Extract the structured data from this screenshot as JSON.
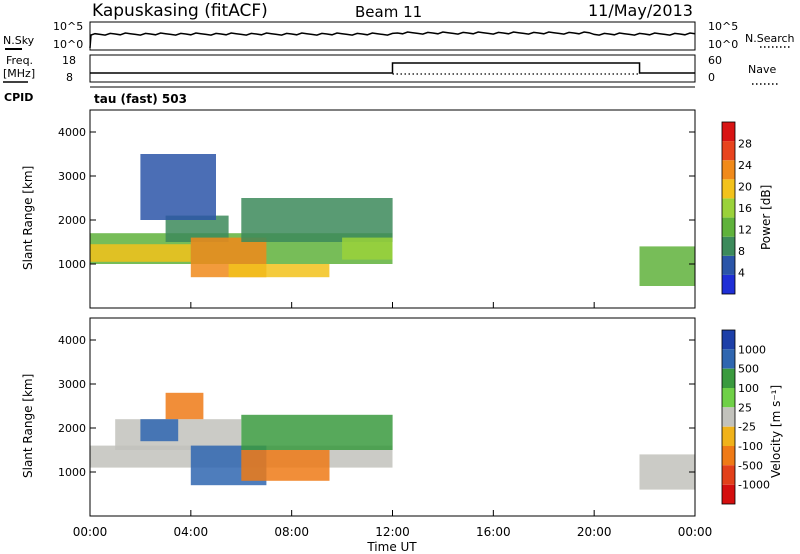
{
  "header": {
    "station": "Kapuskasing (fitACF)",
    "beam": "Beam 11",
    "date": "11/May/2013"
  },
  "noise_panel": {
    "left_label": "N.Sky",
    "right_label": "N.Search",
    "ticks_left": [
      "10^5",
      "10^0"
    ],
    "ticks_right": [
      "10^5",
      "10^0"
    ]
  },
  "freq_panel": {
    "left_label_1": "Freq.",
    "left_label_2": "[MHz]",
    "right_label": "Nave",
    "ticks_left": [
      "18",
      "8"
    ],
    "ticks_right": [
      "60",
      "0"
    ]
  },
  "cpid": {
    "label": "CPID",
    "value": "tau (fast) 503"
  },
  "colors": {
    "power": [
      "#1f2fd6",
      "#2b55a8",
      "#3c8a5b",
      "#5fb23b",
      "#9ad23a",
      "#f2c21b",
      "#f08a1a",
      "#e8441e",
      "#d81414"
    ],
    "velocity": [
      "#1d3fa8",
      "#2f66b0",
      "#3a9a3e",
      "#6fd047",
      "#c2c2bc",
      "#f0b21a",
      "#ef7a16",
      "#e2401a",
      "#d40f0f"
    ]
  },
  "time_axis": {
    "ticks": [
      "00:00",
      "04:00",
      "08:00",
      "12:00",
      "16:00",
      "20:00",
      "00:00"
    ],
    "title": "Time UT"
  },
  "chart_data": [
    {
      "type": "heatmap",
      "title": "Power",
      "xlabel": "Time UT",
      "ylabel": "Slant Range [km]",
      "xlim": [
        0,
        24
      ],
      "ylim": [
        0,
        4500
      ],
      "yticks": [
        "1000",
        "2000",
        "3000",
        "4000"
      ],
      "colorbar": {
        "label": "Power [dB]",
        "ticks": [
          "4",
          "8",
          "12",
          "16",
          "20",
          "24",
          "28"
        ],
        "range": [
          0,
          32
        ]
      },
      "regions": [
        {
          "t": [
            0.0,
            12.0
          ],
          "r": [
            1000,
            1700
          ],
          "value": 12
        },
        {
          "t": [
            0.0,
            4.0
          ],
          "r": [
            1050,
            1450
          ],
          "value": 20
        },
        {
          "t": [
            3.0,
            5.5
          ],
          "r": [
            1500,
            2100
          ],
          "value": 8
        },
        {
          "t": [
            4.0,
            7.0
          ],
          "r": [
            700,
            1600
          ],
          "value": 26
        },
        {
          "t": [
            5.5,
            9.5
          ],
          "r": [
            700,
            1000
          ],
          "value": 22
        },
        {
          "t": [
            6.0,
            12.0
          ],
          "r": [
            1500,
            2500
          ],
          "value": 8
        },
        {
          "t": [
            10.0,
            12.0
          ],
          "r": [
            1100,
            1600
          ],
          "value": 18
        },
        {
          "t": [
            2.0,
            5.0
          ],
          "r": [
            2000,
            3500
          ],
          "value": 6
        },
        {
          "t": [
            21.8,
            24.0
          ],
          "r": [
            500,
            1400
          ],
          "value": 12
        }
      ]
    },
    {
      "type": "heatmap",
      "title": "Velocity",
      "xlabel": "Time UT",
      "ylabel": "Slant Range [km]",
      "xlim": [
        0,
        24
      ],
      "ylim": [
        0,
        4500
      ],
      "yticks": [
        "1000",
        "2000",
        "3000",
        "4000"
      ],
      "colorbar": {
        "label": "Velocity [m s⁻¹]",
        "ticks": [
          "1000",
          "500",
          "100",
          "25",
          "-25",
          "-100",
          "-500",
          "-1000"
        ]
      },
      "regions": [
        {
          "t": [
            0.0,
            12.0
          ],
          "r": [
            1100,
            1600
          ],
          "value": 0
        },
        {
          "t": [
            1.0,
            6.0
          ],
          "r": [
            1500,
            2200
          ],
          "value": 0
        },
        {
          "t": [
            4.0,
            7.0
          ],
          "r": [
            700,
            1600
          ],
          "value": 150
        },
        {
          "t": [
            6.0,
            9.5
          ],
          "r": [
            800,
            1500
          ],
          "value": -150
        },
        {
          "t": [
            6.0,
            12.0
          ],
          "r": [
            1500,
            2300
          ],
          "value": 50
        },
        {
          "t": [
            3.0,
            4.5
          ],
          "r": [
            2200,
            2800
          ],
          "value": -300
        },
        {
          "t": [
            2.0,
            3.5
          ],
          "r": [
            1700,
            2200
          ],
          "value": 300
        },
        {
          "t": [
            21.8,
            24.0
          ],
          "r": [
            600,
            1400
          ],
          "value": 0
        }
      ]
    }
  ]
}
